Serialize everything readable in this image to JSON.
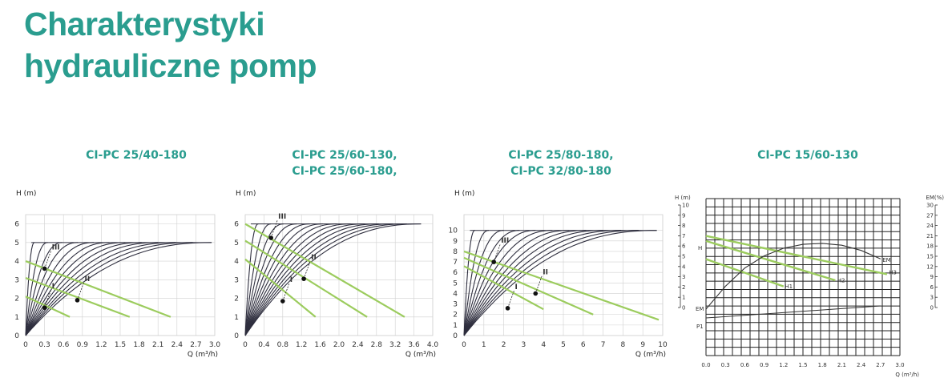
{
  "page": {
    "title_line1": "Charakterystyki",
    "title_line2": "hydrauliczne pomp"
  },
  "colors": {
    "accent": "#2a9d8f",
    "curve": "#2e2e3e",
    "system": "#9ccc5e",
    "grid": "#d0d0d0"
  },
  "chart_data": [
    {
      "type": "line",
      "title": "CI-PC 25/40-180",
      "xlabel": "Q (m³/h)",
      "ylabel": "H (m)",
      "xlim": [
        0,
        3.0
      ],
      "ylim": [
        0,
        6.5
      ],
      "xticks": [
        "0",
        "0.3",
        "0.6",
        "0.9",
        "1.2",
        "1.5",
        "1.8",
        "2.1",
        "2.4",
        "2.7",
        "3.0"
      ],
      "yticks": [
        "0",
        "1",
        "2",
        "3",
        "4",
        "5",
        "6"
      ],
      "pump_curves": {
        "shutoff_head": 5,
        "curve_max_q": [
          0.14,
          0.35,
          0.58,
          0.83,
          1.08,
          1.33,
          1.58,
          1.84,
          2.1,
          2.38,
          2.65,
          2.95
        ]
      },
      "system_lines": [
        {
          "x": [
            0,
            2.3
          ],
          "y": [
            4.0,
            1.0
          ]
        },
        {
          "x": [
            0,
            1.65
          ],
          "y": [
            3.1,
            1.0
          ]
        },
        {
          "x": [
            0,
            0.7
          ],
          "y": [
            2.1,
            1.0
          ]
        }
      ],
      "operating_points": [
        {
          "label": "I",
          "x": 0.3,
          "y": 1.5
        },
        {
          "label": "II",
          "x": 0.82,
          "y": 1.9
        },
        {
          "label": "III",
          "x": 0.3,
          "y": 3.6
        }
      ]
    },
    {
      "type": "line",
      "title_line1": "CI-PC 25/60-130,",
      "title_line2": "CI-PC 25/60-180,",
      "xlabel": "Q (m³/h)",
      "ylabel": "H (m)",
      "xlim": [
        0,
        4.0
      ],
      "ylim": [
        0,
        6.5
      ],
      "xticks": [
        "0",
        "0.4",
        "0.8",
        "1.2",
        "1.6",
        "2.0",
        "2.4",
        "2.8",
        "3.2",
        "3.6",
        "4.0"
      ],
      "yticks": [
        "0",
        "1",
        "2",
        "3",
        "4",
        "5",
        "6"
      ],
      "pump_curves": {
        "shutoff_head": 6,
        "curve_max_q": [
          0.28,
          0.55,
          0.82,
          1.1,
          1.38,
          1.66,
          1.95,
          2.25,
          2.55,
          2.85,
          3.15,
          3.45,
          3.75
        ]
      },
      "system_lines": [
        {
          "x": [
            0,
            3.4
          ],
          "y": [
            6.0,
            1.0
          ]
        },
        {
          "x": [
            0,
            2.6
          ],
          "y": [
            5.1,
            1.0
          ]
        },
        {
          "x": [
            0,
            1.5
          ],
          "y": [
            4.1,
            1.0
          ]
        }
      ],
      "operating_points": [
        {
          "label": "I",
          "x": 0.8,
          "y": 1.85
        },
        {
          "label": "II",
          "x": 1.25,
          "y": 3.05
        },
        {
          "label": "III",
          "x": 0.55,
          "y": 5.25
        }
      ]
    },
    {
      "type": "line",
      "title_line1": "CI-PC 25/80-180,",
      "title_line2": "CI-PC 32/80-180",
      "xlabel": "Q (m³/h)",
      "ylabel": "H (m)",
      "xlim": [
        0,
        10
      ],
      "ylim": [
        0,
        11.5
      ],
      "xticks": [
        "0",
        "1",
        "2",
        "3",
        "4",
        "5",
        "6",
        "7",
        "8",
        "9",
        "10"
      ],
      "yticks": [
        "0",
        "1",
        "2",
        "3",
        "4",
        "5",
        "6",
        "7",
        "8",
        "9",
        "10"
      ],
      "pump_curves": {
        "shutoff_head": 10,
        "curve_max_q": [
          0.55,
          1.25,
          2.0,
          2.8,
          3.6,
          4.45,
          5.3,
          6.15,
          7.0,
          7.9,
          8.8,
          9.7
        ]
      },
      "system_lines": [
        {
          "x": [
            0,
            9.8
          ],
          "y": [
            8.0,
            1.5
          ]
        },
        {
          "x": [
            0,
            6.5
          ],
          "y": [
            7.4,
            2.0
          ]
        },
        {
          "x": [
            0,
            4.0
          ],
          "y": [
            6.6,
            2.5
          ]
        }
      ],
      "operating_points": [
        {
          "label": "I",
          "x": 2.2,
          "y": 2.6
        },
        {
          "label": "II",
          "x": 3.6,
          "y": 4.0
        },
        {
          "label": "III",
          "x": 1.5,
          "y": 7.0
        }
      ]
    },
    {
      "type": "line",
      "title": "CI-PC 15/60-130",
      "xlabel": "Q  (m³/h)",
      "ylabel_left": "H (m)",
      "ylabel_right": "EM(%)",
      "xlim": [
        0,
        3.0
      ],
      "xticks": [
        "0.0",
        "0.3",
        "0.6",
        "0.9",
        "1.2",
        "1.5",
        "1.8",
        "2.1",
        "2.4",
        "2.7",
        "3.0"
      ],
      "yticks_left": [
        "0",
        "1",
        "2",
        "3",
        "4",
        "5",
        "6",
        "7",
        "8",
        "9",
        "10"
      ],
      "yticks_right": [
        "0",
        "3",
        "6",
        "9",
        "12",
        "15",
        "18",
        "21",
        "24",
        "27",
        "30"
      ],
      "labels": {
        "h": "H",
        "em": "EM",
        "em_left": "EM",
        "p1": "P1",
        "h1": "H1",
        "h2": "H2",
        "h3": "H3"
      },
      "series": [
        {
          "name": "H1",
          "x": [
            0,
            1.2
          ],
          "y": [
            4.4,
            1.7
          ]
        },
        {
          "name": "H2",
          "x": [
            0,
            2.0
          ],
          "y": [
            6.2,
            2.3
          ]
        },
        {
          "name": "H3",
          "x": [
            0,
            2.8
          ],
          "y": [
            6.7,
            2.9
          ]
        }
      ],
      "efficiency_curve_em_percent": {
        "x": [
          0.0,
          0.3,
          0.6,
          0.9,
          1.2,
          1.5,
          1.8,
          2.1,
          2.4,
          2.7
        ],
        "y": [
          0,
          7.5,
          13.5,
          17.5,
          20,
          21.3,
          21.6,
          21.0,
          19.3,
          16.5
        ]
      }
    }
  ]
}
